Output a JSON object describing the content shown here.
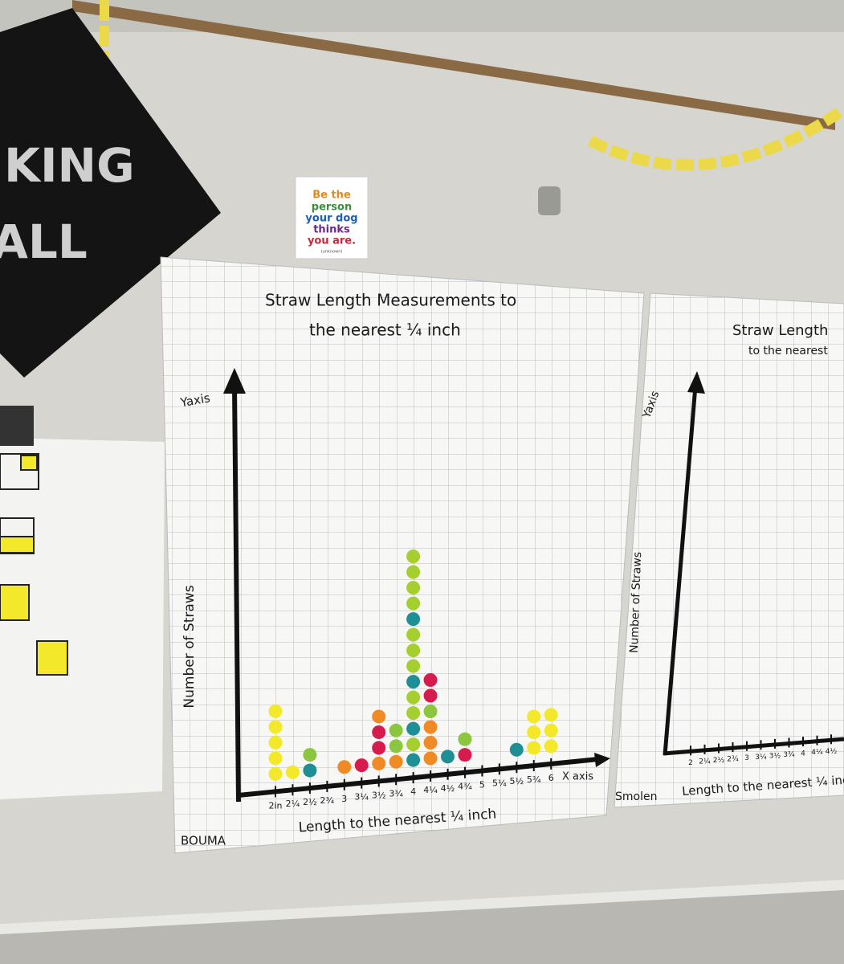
{
  "chart_data": {
    "type": "dotplot",
    "title": "Straw Length Measurements to",
    "subtitle": "the nearest ¼ inch",
    "y_axis_name": "Yaxis",
    "y_label": "Number of Straws",
    "x_label": "Length to the nearest ¼ inch",
    "x_axis_name": "X axis",
    "author": "BOUMA",
    "categories": [
      "2in",
      "2¼",
      "2½",
      "2¾",
      "3",
      "3¼",
      "3½",
      "3¾",
      "4",
      "4¼",
      "4½",
      "4¾",
      "5",
      "5¼",
      "5½",
      "5¾",
      "6"
    ],
    "values": [
      5,
      1,
      2,
      0,
      1,
      1,
      4,
      3,
      14,
      6,
      1,
      2,
      0,
      0,
      1,
      3,
      3
    ],
    "dot_colors": [
      [
        "#f3e829",
        "#f3e829",
        "#f3e829",
        "#f3e829",
        "#f3e829"
      ],
      [
        "#f3e829"
      ],
      [
        "#1e8f95",
        "#8cc63f"
      ],
      [],
      [
        "#f08a24"
      ],
      [
        "#d81b4e"
      ],
      [
        "#f08a24",
        "#d81b4e",
        "#d81b4e",
        "#f08a24"
      ],
      [
        "#f08a24",
        "#8cc63f",
        "#8cc63f"
      ],
      [
        "#1e8f95",
        "#a4cf2e",
        "#1e8f95",
        "#a4cf2e",
        "#a4cf2e",
        "#1e8f95",
        "#a4cf2e",
        "#a4cf2e",
        "#a4cf2e",
        "#1e8f95",
        "#a4cf2e",
        "#a4cf2e",
        "#a4cf2e",
        "#a4cf2e"
      ],
      [
        "#f08a24",
        "#f08a24",
        "#f08a24",
        "#8cc63f",
        "#d81b4e",
        "#d81b4e"
      ],
      [
        "#1e8f95"
      ],
      [
        "#d81b4e",
        "#8cc63f"
      ],
      [],
      [],
      [
        "#1e8f95"
      ],
      [
        "#f3e829",
        "#f3e829",
        "#f3e829"
      ],
      [
        "#f3e829",
        "#f3e829",
        "#f3e829"
      ]
    ]
  },
  "sticker": {
    "line1": "Be the",
    "line2": "person",
    "line3": "your dog",
    "line4": "thinks",
    "line5": "you are.",
    "credit": "(unknown)"
  },
  "sign": {
    "line1": "KING",
    "line2": "ALL"
  },
  "second_poster": {
    "title": "Straw Length",
    "subtitle": "to the nearest",
    "y_axis_name": "Yaxis",
    "y_label": "Number of Straws",
    "x_label": "Length to the nearest ¼ inch",
    "author": "Smolen",
    "ticks": [
      "2",
      "2¼",
      "2½",
      "2¾",
      "3",
      "3¼",
      "3½",
      "3¾",
      "4",
      "4¼",
      "4½"
    ]
  }
}
